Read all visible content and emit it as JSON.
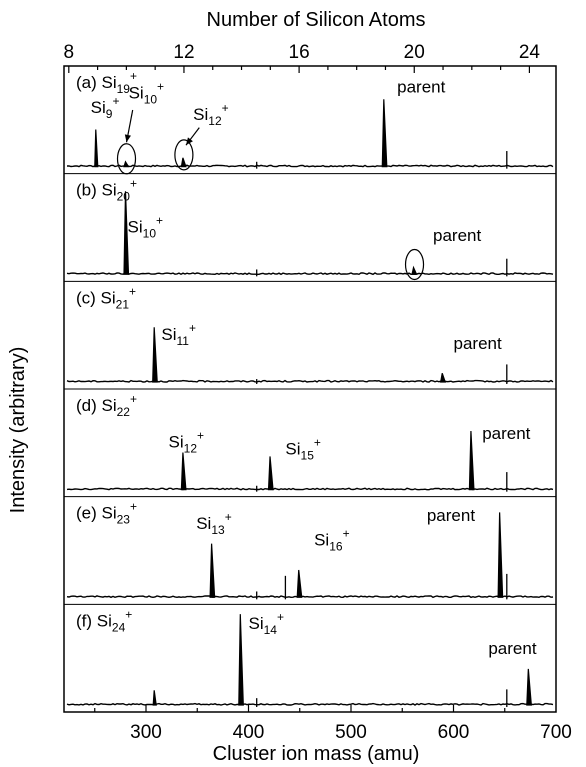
{
  "chart_data": {
    "type": "line",
    "title": "",
    "xlabel": "Cluster ion mass (amu)",
    "ylabel": "Intensity (arbitrary)",
    "x2label": "Number of Silicon Atoms",
    "xlim": [
      220,
      700
    ],
    "xticks": [
      "300",
      "400",
      "500",
      "600",
      "700"
    ],
    "x2_atoms_per_amu": 28.0855,
    "x2ticks": [
      "8",
      "12",
      "16",
      "20",
      "24"
    ],
    "panels": [
      {
        "id": "a",
        "label": "(a) Si19+",
        "prefix": "(a) Si",
        "n": "19",
        "charge": "+",
        "baseline_artifacts": [
          {
            "x": 408,
            "h": 0.05
          },
          {
            "x": 652,
            "h": 0.16
          }
        ],
        "peaks": [
          {
            "x": 251,
            "h": 0.38,
            "w": 2
          },
          {
            "x": 280,
            "h": 0.05,
            "w": 3
          },
          {
            "x": 336,
            "h": 0.09,
            "w": 3
          },
          {
            "x": 532,
            "h": 0.69,
            "w": 3
          }
        ],
        "labels": [
          {
            "prefix": "Si",
            "n": "9",
            "charge": "+",
            "x": 246,
            "y": 0.55
          },
          {
            "prefix": "Si",
            "n": "10",
            "charge": "+",
            "x": 283,
            "y": 0.7
          },
          {
            "prefix": "Si",
            "n": "12",
            "charge": "+",
            "x": 346,
            "y": 0.48
          },
          {
            "text": "parent",
            "x": 545,
            "y": 0.76
          }
        ],
        "circles": [
          {
            "x": 280,
            "h": 0.05
          },
          {
            "x": 336,
            "h": 0.09
          }
        ],
        "arrows": [
          {
            "from_x": 287,
            "from_y": 0.58,
            "to_x": 281,
            "to_y": 0.25
          },
          {
            "from_x": 352,
            "from_y": 0.4,
            "to_x": 339,
            "to_y": 0.22
          }
        ]
      },
      {
        "id": "b",
        "label": "(b) Si20+",
        "prefix": "(b) Si",
        "n": "20",
        "charge": "+",
        "baseline_artifacts": [
          {
            "x": 408,
            "h": 0.05
          },
          {
            "x": 652,
            "h": 0.16
          }
        ],
        "peaks": [
          {
            "x": 280,
            "h": 0.85,
            "w": 3
          },
          {
            "x": 561,
            "h": 0.07,
            "w": 3
          }
        ],
        "labels": [
          {
            "prefix": "Si",
            "n": "10",
            "charge": "+",
            "x": 282,
            "y": 0.43
          },
          {
            "text": "parent",
            "x": 580,
            "y": 0.34
          }
        ],
        "circles": [
          {
            "x": 561,
            "h": 0.07
          }
        ],
        "arrows": []
      },
      {
        "id": "c",
        "label": "(c) Si21+",
        "prefix": "(c) Si",
        "n": "21",
        "charge": "+",
        "baseline_artifacts": [
          {
            "x": 408,
            "h": 0.03
          },
          {
            "x": 652,
            "h": 0.18
          }
        ],
        "peaks": [
          {
            "x": 308,
            "h": 0.56,
            "w": 3
          },
          {
            "x": 589,
            "h": 0.09,
            "w": 3
          }
        ],
        "labels": [
          {
            "prefix": "Si",
            "n": "11",
            "charge": "+",
            "x": 315,
            "y": 0.43
          },
          {
            "text": "parent",
            "x": 600,
            "y": 0.34
          }
        ],
        "circles": [],
        "arrows": []
      },
      {
        "id": "d",
        "label": "(d) Si22+",
        "prefix": "(d) Si",
        "n": "22",
        "charge": "+",
        "baseline_artifacts": [
          {
            "x": 408,
            "h": 0.04
          },
          {
            "x": 652,
            "h": 0.18
          }
        ],
        "peaks": [
          {
            "x": 336,
            "h": 0.38,
            "w": 3
          },
          {
            "x": 421,
            "h": 0.34,
            "w": 3
          },
          {
            "x": 617,
            "h": 0.6,
            "w": 3
          }
        ],
        "labels": [
          {
            "prefix": "Si",
            "n": "12",
            "charge": "+",
            "x": 322,
            "y": 0.43
          },
          {
            "prefix": "Si",
            "n": "15",
            "charge": "+",
            "x": 436,
            "y": 0.36
          },
          {
            "text": "parent",
            "x": 628,
            "y": 0.52
          }
        ],
        "circles": [],
        "arrows": []
      },
      {
        "id": "e",
        "label": "(e) Si23+",
        "prefix": "(e) Si",
        "n": "23",
        "charge": "+",
        "baseline_artifacts": [
          {
            "x": 408,
            "h": 0.06
          },
          {
            "x": 436,
            "h": 0.22
          },
          {
            "x": 652,
            "h": 0.24
          }
        ],
        "peaks": [
          {
            "x": 364,
            "h": 0.55,
            "w": 3
          },
          {
            "x": 449,
            "h": 0.28,
            "w": 3
          },
          {
            "x": 645,
            "h": 0.87,
            "w": 3
          }
        ],
        "labels": [
          {
            "prefix": "Si",
            "n": "13",
            "charge": "+",
            "x": 349,
            "y": 0.7
          },
          {
            "prefix": "Si",
            "n": "16",
            "charge": "+",
            "x": 464,
            "y": 0.53
          },
          {
            "text": "parent",
            "x": 574,
            "y": 0.78
          }
        ],
        "circles": [],
        "arrows": []
      },
      {
        "id": "f",
        "label": "(f) Si24+",
        "prefix": "(f) Si",
        "n": "24",
        "charge": "+",
        "baseline_artifacts": [
          {
            "x": 408,
            "h": 0.07
          },
          {
            "x": 652,
            "h": 0.16
          }
        ],
        "peaks": [
          {
            "x": 308,
            "h": 0.15,
            "w": 2
          },
          {
            "x": 392,
            "h": 0.93,
            "w": 3
          },
          {
            "x": 673,
            "h": 0.37,
            "w": 3
          }
        ],
        "labels": [
          {
            "prefix": "Si",
            "n": "14",
            "charge": "+",
            "x": 400,
            "y": 0.78
          },
          {
            "text": "parent",
            "x": 634,
            "y": 0.52
          }
        ],
        "circles": [],
        "arrows": []
      }
    ]
  }
}
